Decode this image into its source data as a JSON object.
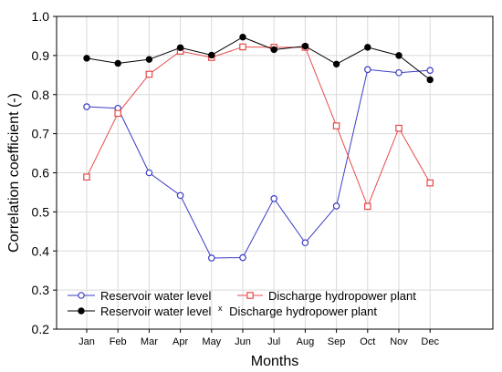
{
  "chart_data": {
    "type": "line",
    "categories": [
      "Jan",
      "Feb",
      "Mar",
      "Apr",
      "May",
      "Jun",
      "Jul",
      "Aug",
      "Sep",
      "Oct",
      "Nov",
      "Dec"
    ],
    "series": [
      {
        "name": "Reservoir water level",
        "color": "#3b3bc4",
        "marker": "circle-open",
        "values": [
          0.769,
          0.765,
          0.6,
          0.542,
          0.382,
          0.383,
          0.534,
          0.421,
          0.515,
          0.864,
          0.856,
          0.862
        ]
      },
      {
        "name": "Discharge hydropower plant",
        "color": "#e84a4a",
        "marker": "square-open",
        "values": [
          0.589,
          0.752,
          0.852,
          0.911,
          0.895,
          0.922,
          0.921,
          0.921,
          0.72,
          0.514,
          0.714,
          0.574
        ]
      },
      {
        "name": "Reservoir water level",
        "name_suffix": "x",
        "name_tail": "Discharge hydropower plant",
        "color": "#000000",
        "marker": "circle-filled",
        "values": [
          0.893,
          0.88,
          0.89,
          0.92,
          0.901,
          0.947,
          0.915,
          0.924,
          0.878,
          0.921,
          0.9,
          0.838
        ]
      }
    ],
    "title": "",
    "xlabel": "Months",
    "ylabel": "Correlation coefficient  (-)",
    "ylim": [
      0.2,
      1.0
    ],
    "yticks": [
      "0.2",
      "0.3",
      "0.4",
      "0.5",
      "0.6",
      "0.7",
      "0.8",
      "0.9",
      "1.0"
    ],
    "grid": true,
    "legend_position": "bottom-left"
  }
}
